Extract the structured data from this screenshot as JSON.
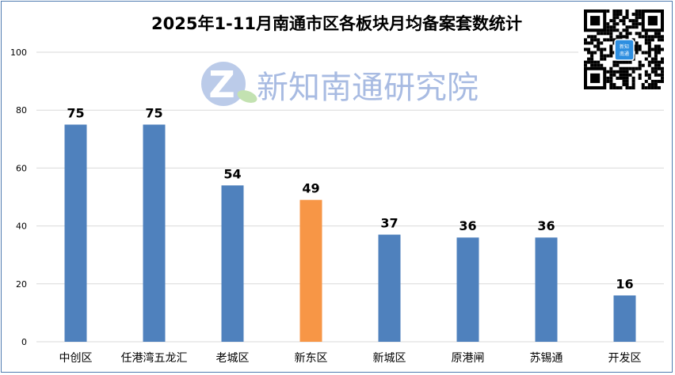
{
  "chart_data": {
    "type": "bar",
    "title": "2025年1-11月南通市区各板块月均备案套数统计",
    "categories": [
      "中创区",
      "任港湾五龙汇",
      "老城区",
      "新东区",
      "新城区",
      "原港闸",
      "苏锡通",
      "开发区"
    ],
    "values": [
      75,
      75,
      54,
      49,
      37,
      36,
      36,
      16
    ],
    "highlight_index": 3,
    "colors": {
      "bar": "#4f81bd",
      "highlight": "#f79646",
      "grid": "#d9d9d9"
    },
    "xlabel": "",
    "ylabel": "",
    "ylim": [
      0,
      100
    ],
    "yticks": [
      0,
      20,
      40,
      60,
      80,
      100
    ],
    "grid": true,
    "legend": "none"
  },
  "watermark": {
    "text": "新知南通研究院",
    "logo_letter": "Z"
  },
  "qr_code": {
    "center_label": "新知南通"
  }
}
